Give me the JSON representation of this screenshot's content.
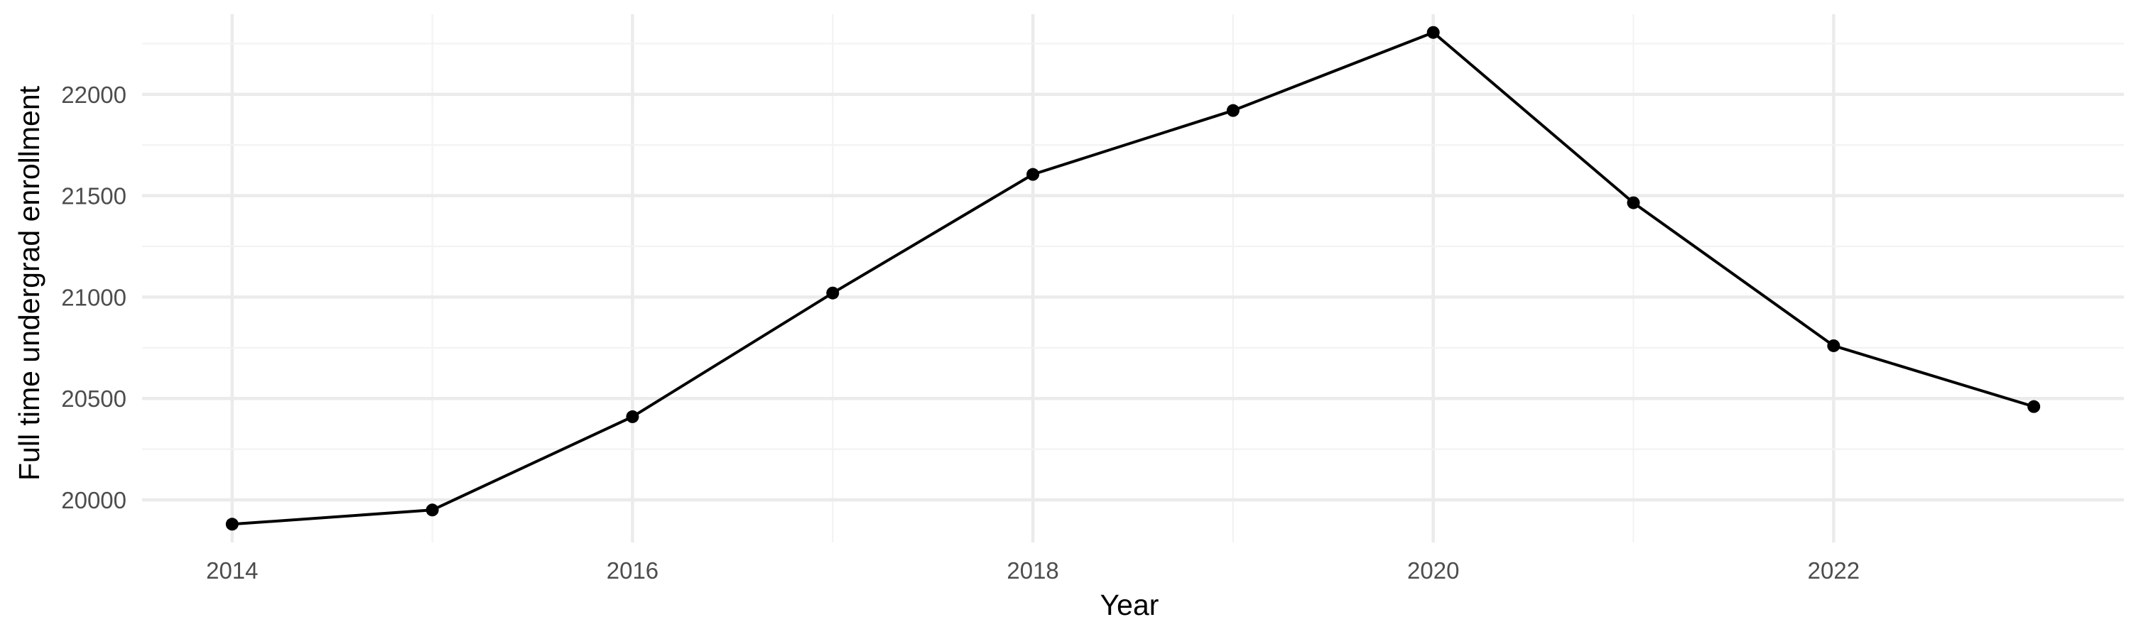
{
  "chart_data": {
    "type": "line",
    "title": "",
    "xlabel": "Year",
    "ylabel": "Full time undergrad enrollment",
    "x": [
      2014,
      2015,
      2016,
      2017,
      2018,
      2019,
      2020,
      2021,
      2022,
      2023
    ],
    "series": [
      {
        "values": [
          19880,
          19950,
          20410,
          21020,
          21605,
          21920,
          22305,
          21465,
          20760,
          20460
        ],
        "color": "#000000"
      }
    ],
    "x_ticks": [
      "2014",
      "2016",
      "2018",
      "2020",
      "2022"
    ],
    "y_ticks": [
      "20000",
      "20500",
      "21000",
      "21500",
      "22000"
    ],
    "xlim": [
      2013.55,
      2023.45
    ],
    "ylim": [
      19790,
      22395
    ],
    "grid": true,
    "legend": "none"
  }
}
